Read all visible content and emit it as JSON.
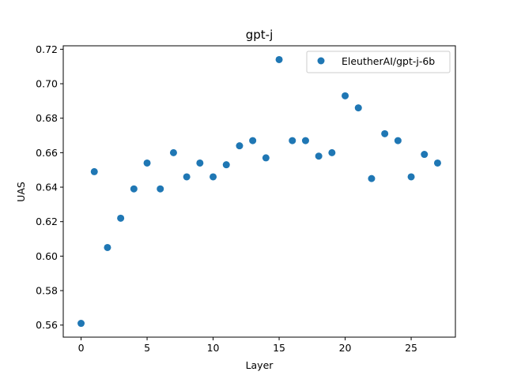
{
  "chart_data": {
    "type": "scatter",
    "title": "gpt-j",
    "xlabel": "Layer",
    "ylabel": "UAS",
    "xlim": [
      -1.35,
      28.35
    ],
    "ylim": [
      0.553,
      0.722
    ],
    "xticks": [
      0,
      5,
      10,
      15,
      20,
      25
    ],
    "yticks": [
      0.56,
      0.58,
      0.6,
      0.62,
      0.64,
      0.66,
      0.68,
      0.7,
      0.72
    ],
    "ytick_labels": [
      "0.56",
      "0.58",
      "0.60",
      "0.62",
      "0.64",
      "0.66",
      "0.68",
      "0.70",
      "0.72"
    ],
    "grid": false,
    "legend": "top-right",
    "color": "#1f77b4",
    "series": [
      {
        "name": "EleutherAI/gpt-j-6b",
        "x": [
          0,
          1,
          2,
          3,
          4,
          5,
          6,
          7,
          8,
          9,
          10,
          11,
          12,
          13,
          14,
          15,
          16,
          17,
          18,
          19,
          20,
          21,
          22,
          23,
          24,
          25,
          26,
          27
        ],
        "y": [
          0.561,
          0.649,
          0.605,
          0.622,
          0.639,
          0.654,
          0.639,
          0.66,
          0.646,
          0.654,
          0.646,
          0.653,
          0.664,
          0.667,
          0.657,
          0.714,
          0.667,
          0.667,
          0.658,
          0.66,
          0.693,
          0.686,
          0.645,
          0.671,
          0.667,
          0.646,
          0.659,
          0.654
        ]
      }
    ]
  }
}
